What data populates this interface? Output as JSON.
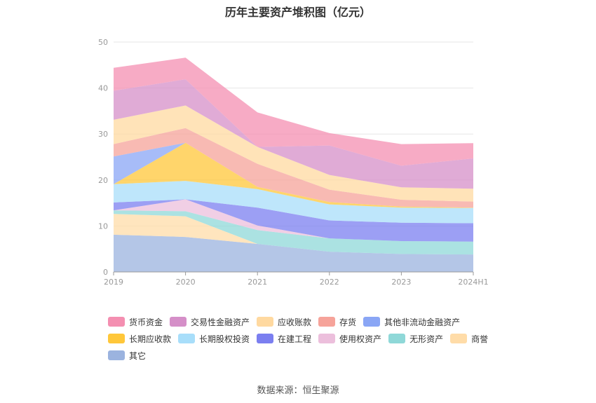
{
  "chart_title": "历年主要资产堆积图（亿元）",
  "source_label": "数据来源：恒生聚源",
  "chart_data": {
    "type": "area",
    "stacked": true,
    "categories": [
      "2019",
      "2020",
      "2021",
      "2022",
      "2023",
      "2024H1"
    ],
    "ylim": [
      0,
      50
    ],
    "yticks": [
      0,
      10,
      20,
      30,
      40,
      50
    ],
    "grid": true,
    "legend_position": "bottom",
    "series": [
      {
        "name": "货币资金",
        "color": "#f48fb1",
        "values": [
          5.0,
          4.7,
          7.5,
          2.7,
          4.7,
          3.3
        ]
      },
      {
        "name": "交易性金融资产",
        "color": "#d58fc8",
        "values": [
          6.3,
          5.7,
          0.0,
          6.4,
          4.7,
          6.6
        ]
      },
      {
        "name": "应收账款",
        "color": "#ffd9a0",
        "values": [
          5.3,
          4.9,
          3.7,
          3.2,
          2.7,
          2.8
        ]
      },
      {
        "name": "存货",
        "color": "#f6a39a",
        "values": [
          2.7,
          3.2,
          5.0,
          2.7,
          1.5,
          1.3
        ]
      },
      {
        "name": "其他非流动金融资产",
        "color": "#8aa6f5",
        "values": [
          6.0,
          0.0,
          0.0,
          0.0,
          0.0,
          0.0
        ]
      },
      {
        "name": "长期应收款",
        "color": "#ffc73a",
        "values": [
          0.0,
          8.3,
          0.5,
          0.5,
          0.2,
          0.1
        ]
      },
      {
        "name": "长期股权投资",
        "color": "#a8defa",
        "values": [
          4.0,
          4.0,
          4.0,
          3.5,
          3.3,
          3.3
        ]
      },
      {
        "name": "在建工程",
        "color": "#7b7ff0",
        "values": [
          1.7,
          0.0,
          3.9,
          3.9,
          4.0,
          4.0
        ]
      },
      {
        "name": "使用权资产",
        "color": "#ecbfdc",
        "values": [
          0.0,
          2.6,
          1.0,
          0.0,
          0.0,
          0.0
        ]
      },
      {
        "name": "无形资产",
        "color": "#8fd8d8",
        "values": [
          0.8,
          1.1,
          3.0,
          2.9,
          2.8,
          2.8
        ]
      },
      {
        "name": "商誉",
        "color": "#ffdca8",
        "values": [
          4.5,
          4.5,
          0.0,
          0.0,
          0.0,
          0.0
        ]
      },
      {
        "name": "其它",
        "color": "#9bb3df",
        "values": [
          8.1,
          7.6,
          6.1,
          4.4,
          3.9,
          3.8
        ]
      }
    ]
  }
}
